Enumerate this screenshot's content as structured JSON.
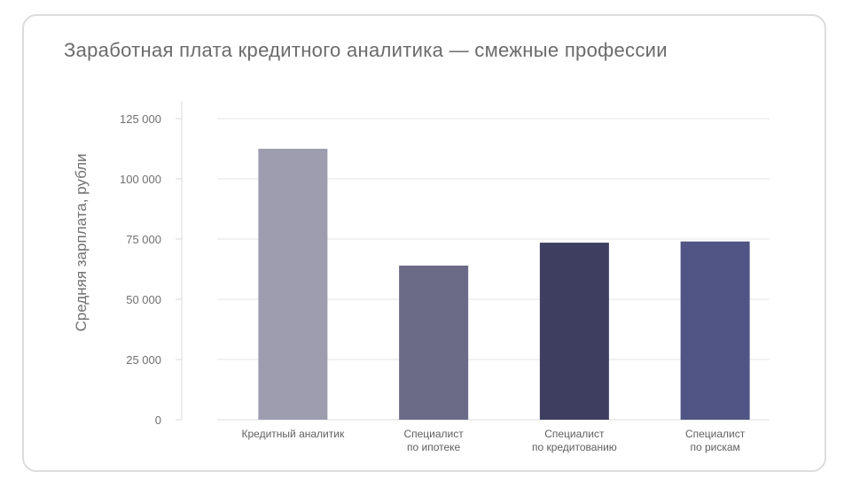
{
  "chart_data": {
    "type": "bar",
    "title": "Заработная плата кредитного аналитика — смежные профессии",
    "xlabel": "",
    "ylabel": "Средняя зарплата, рубли",
    "ylim": [
      0,
      125000
    ],
    "yticks": [
      0,
      25000,
      50000,
      75000,
      100000,
      125000
    ],
    "ytick_labels": [
      "0",
      "25 000",
      "50 000",
      "75 000",
      "100 000",
      "125 000"
    ],
    "grid": true,
    "categories": [
      [
        "Кредитный аналитик"
      ],
      [
        "Специалист",
        "по ипотеке"
      ],
      [
        "Специалист",
        "по кредитованию"
      ],
      [
        "Специалист",
        "по рискам"
      ]
    ],
    "values": [
      112500,
      64000,
      73500,
      74000
    ],
    "colors": [
      "#9e9db0",
      "#6b6a87",
      "#3e3f60",
      "#505585"
    ]
  }
}
